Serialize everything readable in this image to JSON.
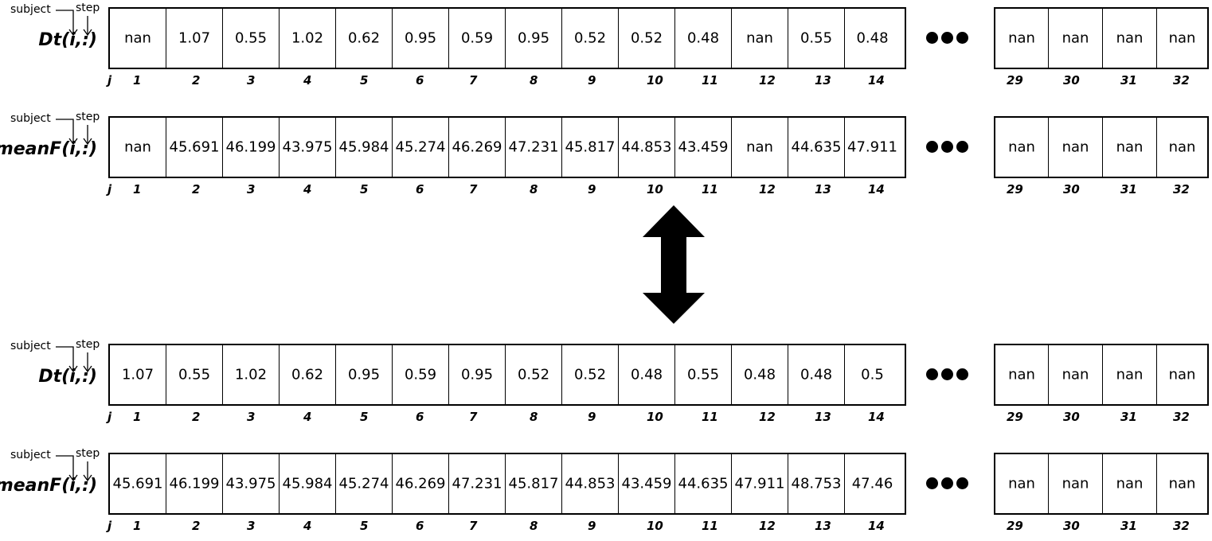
{
  "labels": {
    "subject": "subject",
    "step": "step",
    "j": "j"
  },
  "blocks": [
    {
      "name": "Dt(i,:)",
      "left_values": [
        "nan",
        "1.07",
        "0.55",
        "1.02",
        "0.62",
        "0.95",
        "0.59",
        "0.95",
        "0.52",
        "0.52",
        "0.48",
        "nan",
        "0.55",
        "0.48"
      ],
      "right_values": [
        "nan",
        "nan",
        "nan",
        "nan"
      ],
      "left_idx": [
        "1",
        "2",
        "3",
        "4",
        "5",
        "6",
        "7",
        "8",
        "9",
        "10",
        "11",
        "12",
        "13",
        "14"
      ],
      "right_idx": [
        "29",
        "30",
        "31",
        "32"
      ]
    },
    {
      "name": "meanF(i,:)",
      "left_values": [
        "nan",
        "45.691",
        "46.199",
        "43.975",
        "45.984",
        "45.274",
        "46.269",
        "47.231",
        "45.817",
        "44.853",
        "43.459",
        "nan",
        "44.635",
        "47.911"
      ],
      "right_values": [
        "nan",
        "nan",
        "nan",
        "nan"
      ],
      "left_idx": [
        "1",
        "2",
        "3",
        "4",
        "5",
        "6",
        "7",
        "8",
        "9",
        "10",
        "11",
        "12",
        "13",
        "14"
      ],
      "right_idx": [
        "29",
        "30",
        "31",
        "32"
      ]
    },
    {
      "name": "Dt(i,:)",
      "left_values": [
        "1.07",
        "0.55",
        "1.02",
        "0.62",
        "0.95",
        "0.59",
        "0.95",
        "0.52",
        "0.52",
        "0.48",
        "0.55",
        "0.48",
        "0.48",
        "0.5"
      ],
      "right_values": [
        "nan",
        "nan",
        "nan",
        "nan"
      ],
      "left_idx": [
        "1",
        "2",
        "3",
        "4",
        "5",
        "6",
        "7",
        "8",
        "9",
        "10",
        "11",
        "12",
        "13",
        "14"
      ],
      "right_idx": [
        "29",
        "30",
        "31",
        "32"
      ]
    },
    {
      "name": "meanF(i,:)",
      "left_values": [
        "45.691",
        "46.199",
        "43.975",
        "45.984",
        "45.274",
        "46.269",
        "47.231",
        "45.817",
        "44.853",
        "43.459",
        "44.635",
        "47.911",
        "48.753",
        "47.46"
      ],
      "right_values": [
        "nan",
        "nan",
        "nan",
        "nan"
      ],
      "left_idx": [
        "1",
        "2",
        "3",
        "4",
        "5",
        "6",
        "7",
        "8",
        "9",
        "10",
        "11",
        "12",
        "13",
        "14"
      ],
      "right_idx": [
        "29",
        "30",
        "31",
        "32"
      ]
    }
  ]
}
